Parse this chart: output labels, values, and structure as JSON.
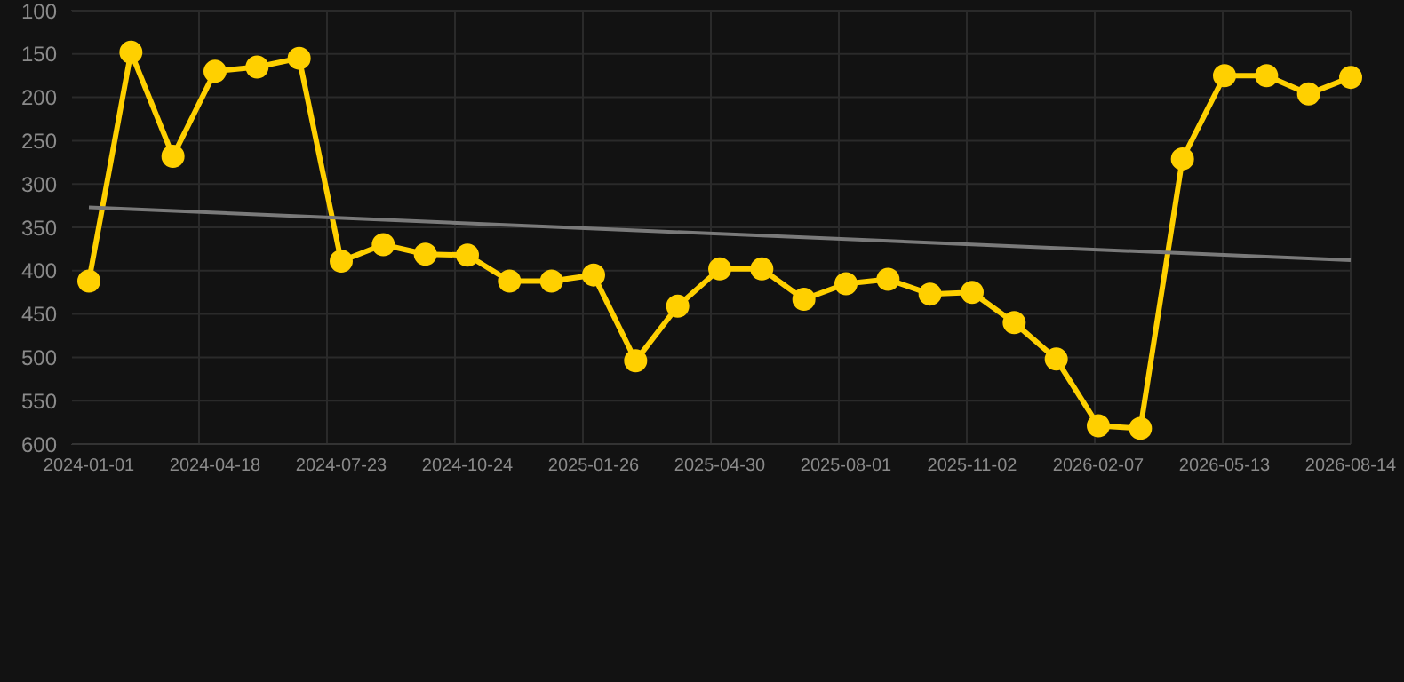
{
  "chart_data": {
    "type": "line",
    "categories": [
      "2024-01-01",
      null,
      null,
      "2024-04-18",
      null,
      null,
      "2024-07-23",
      null,
      null,
      "2024-10-24",
      null,
      null,
      "2025-01-26",
      null,
      null,
      "2025-04-30",
      null,
      null,
      "2025-08-01",
      null,
      null,
      "2025-11-02",
      null,
      null,
      "2026-02-07",
      null,
      null,
      "2026-05-13",
      null,
      null,
      "2026-08-14"
    ],
    "series": [
      {
        "color": "#ffd000",
        "marker": "circle",
        "values": [
          412,
          148,
          268,
          170,
          165,
          155,
          389,
          370,
          381,
          382,
          412,
          412,
          405,
          504,
          441,
          398,
          398,
          433,
          415,
          410,
          427,
          425,
          460,
          502,
          579,
          582,
          271,
          175,
          175,
          196,
          177
        ]
      },
      {
        "color": "#7a7a7a",
        "marker": "none",
        "values": [
          327,
          null,
          null,
          null,
          null,
          null,
          null,
          null,
          null,
          null,
          null,
          null,
          null,
          null,
          null,
          null,
          null,
          null,
          null,
          null,
          null,
          null,
          null,
          null,
          null,
          null,
          null,
          null,
          null,
          null,
          388
        ]
      }
    ],
    "ylim": [
      600,
      100
    ],
    "yticks": [
      100,
      150,
      200,
      250,
      300,
      350,
      400,
      450,
      500,
      550,
      600
    ],
    "grid": true
  }
}
